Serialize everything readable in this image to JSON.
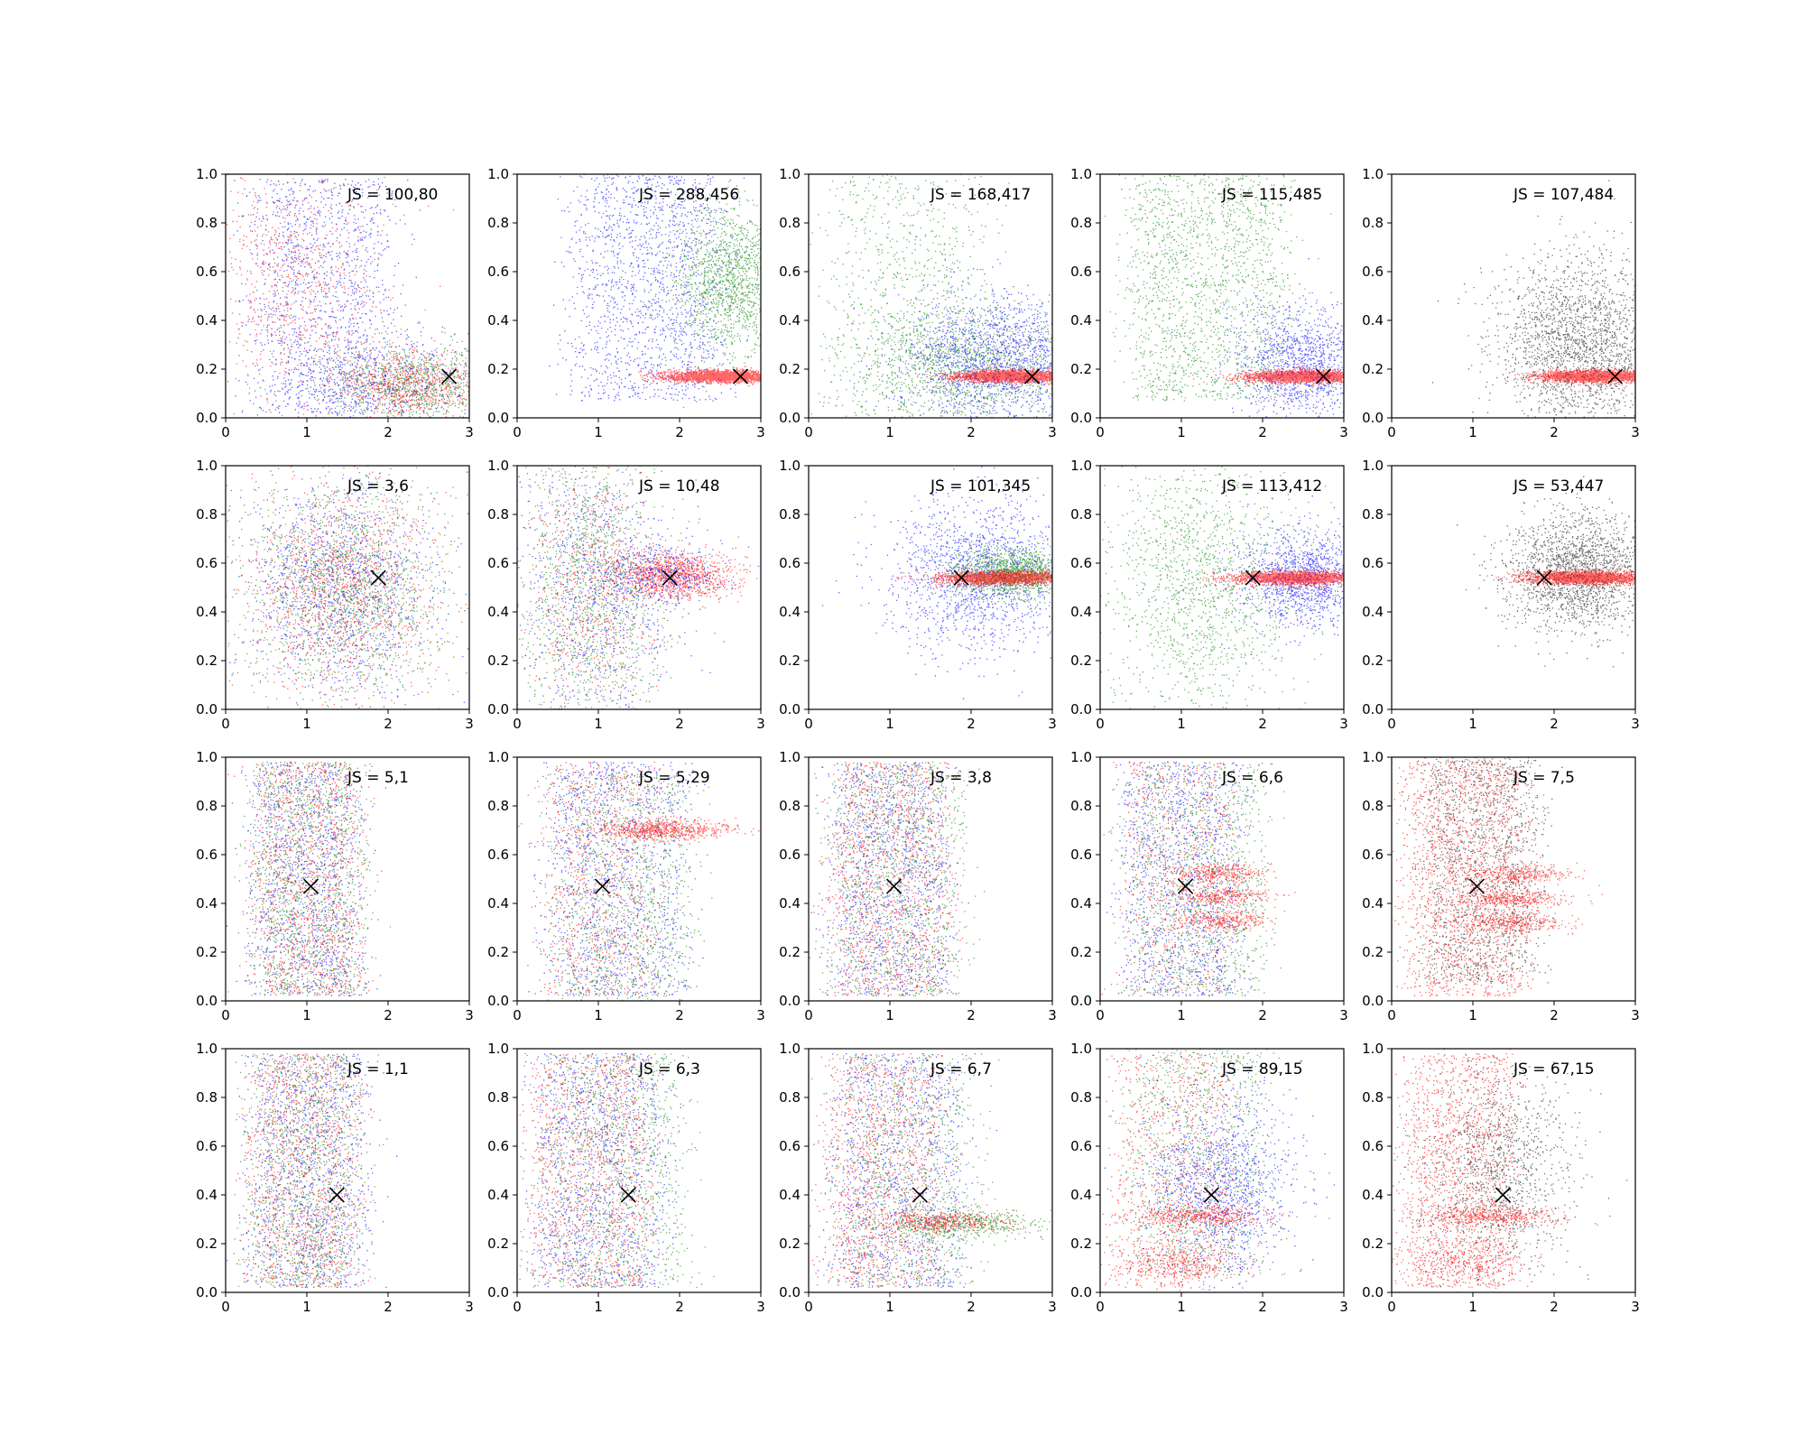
{
  "chart_data": {
    "type": "scatter",
    "grid": false,
    "xlim": [
      0,
      3
    ],
    "ylim": [
      0,
      1
    ],
    "xticks": [
      "0",
      "1",
      "2",
      "3"
    ],
    "yticks": [
      "0.0",
      "0.2",
      "0.4",
      "0.6",
      "0.8",
      "1.0"
    ],
    "colors": {
      "blue": "#0000ff",
      "green": "#008000",
      "red": "#ff0000",
      "black": "#000000"
    },
    "marker": {
      "x": [
        2.75,
        1.88,
        1.05,
        1.37
      ],
      "y": [
        0.17,
        0.54,
        0.47,
        0.4
      ],
      "symbol": "x",
      "color": "#000000"
    },
    "panels": [
      {
        "js": "JS = 100,80",
        "clouds": [
          {
            "color": "blue",
            "n": 1400,
            "cx": 1.2,
            "cy": 0.5,
            "sx": 0.7,
            "sy": 0.3,
            "shape": "uniform"
          },
          {
            "color": "red",
            "n": 900,
            "cx": 0.8,
            "cy": 0.55,
            "sx": 0.6,
            "sy": 0.3
          },
          {
            "color": "green",
            "n": 900,
            "cx": 2.3,
            "cy": 0.14,
            "sx": 0.5,
            "sy": 0.08
          },
          {
            "color": "red",
            "n": 800,
            "cx": 2.3,
            "cy": 0.14,
            "sx": 0.45,
            "sy": 0.07
          },
          {
            "color": "blue",
            "n": 500,
            "cx": 1.9,
            "cy": 0.15,
            "sx": 0.7,
            "sy": 0.1
          }
        ]
      },
      {
        "js": "JS = 288,456",
        "clouds": [
          {
            "color": "blue",
            "n": 1700,
            "cx": 1.6,
            "cy": 0.55,
            "sx": 0.75,
            "sy": 0.3,
            "shape": "uniform"
          },
          {
            "color": "green",
            "n": 1500,
            "cx": 2.6,
            "cy": 0.57,
            "sx": 0.35,
            "sy": 0.15
          },
          {
            "color": "red",
            "n": 2400,
            "cx": 2.5,
            "cy": 0.17,
            "sx": 0.35,
            "sy": 0.012
          }
        ]
      },
      {
        "js": "JS = 168,417",
        "clouds": [
          {
            "color": "green",
            "n": 900,
            "cx": 1.2,
            "cy": 0.55,
            "sx": 0.8,
            "sy": 0.35,
            "shape": "uniform"
          },
          {
            "color": "green",
            "n": 1300,
            "cx": 2.0,
            "cy": 0.22,
            "sx": 0.7,
            "sy": 0.12
          },
          {
            "color": "blue",
            "n": 1700,
            "cx": 2.3,
            "cy": 0.25,
            "sx": 0.6,
            "sy": 0.13
          },
          {
            "color": "red",
            "n": 2400,
            "cx": 2.5,
            "cy": 0.17,
            "sx": 0.35,
            "sy": 0.012
          }
        ]
      },
      {
        "js": "JS = 115,485",
        "clouds": [
          {
            "color": "green",
            "n": 1800,
            "cx": 1.3,
            "cy": 0.55,
            "sx": 0.8,
            "sy": 0.3,
            "shape": "uniform"
          },
          {
            "color": "blue",
            "n": 1300,
            "cx": 2.5,
            "cy": 0.22,
            "sx": 0.4,
            "sy": 0.12
          },
          {
            "color": "red",
            "n": 2400,
            "cx": 2.5,
            "cy": 0.17,
            "sx": 0.35,
            "sy": 0.012
          }
        ]
      },
      {
        "js": "JS = 107,484",
        "clouds": [
          {
            "color": "black",
            "n": 2200,
            "cx": 2.3,
            "cy": 0.3,
            "sx": 0.5,
            "sy": 0.18
          },
          {
            "color": "red",
            "n": 2400,
            "cx": 2.5,
            "cy": 0.17,
            "sx": 0.35,
            "sy": 0.012
          }
        ]
      },
      {
        "js": "JS = 3,6",
        "clouds": [
          {
            "color": "blue",
            "n": 1400,
            "cx": 1.4,
            "cy": 0.5,
            "sx": 0.6,
            "sy": 0.22
          },
          {
            "color": "green",
            "n": 1400,
            "cx": 1.5,
            "cy": 0.5,
            "sx": 0.6,
            "sy": 0.22
          },
          {
            "color": "red",
            "n": 1400,
            "cx": 1.4,
            "cy": 0.5,
            "sx": 0.6,
            "sy": 0.22
          }
        ]
      },
      {
        "js": "JS = 10,48",
        "clouds": [
          {
            "color": "green",
            "n": 1300,
            "cx": 0.9,
            "cy": 0.5,
            "sx": 0.45,
            "sy": 0.3
          },
          {
            "color": "blue",
            "n": 900,
            "cx": 1.0,
            "cy": 0.5,
            "sx": 0.5,
            "sy": 0.3
          },
          {
            "color": "red",
            "n": 700,
            "cx": 0.9,
            "cy": 0.5,
            "sx": 0.45,
            "sy": 0.3
          },
          {
            "color": "red",
            "n": 1200,
            "cx": 1.9,
            "cy": 0.55,
            "sx": 0.4,
            "sy": 0.05
          },
          {
            "color": "blue",
            "n": 400,
            "cx": 1.8,
            "cy": 0.55,
            "sx": 0.4,
            "sy": 0.06
          }
        ]
      },
      {
        "js": "JS = 101,345",
        "clouds": [
          {
            "color": "blue",
            "n": 1600,
            "cx": 2.1,
            "cy": 0.55,
            "sx": 0.55,
            "sy": 0.16
          },
          {
            "color": "green",
            "n": 1300,
            "cx": 2.5,
            "cy": 0.56,
            "sx": 0.35,
            "sy": 0.05
          },
          {
            "color": "red",
            "n": 2200,
            "cx": 2.4,
            "cy": 0.54,
            "sx": 0.38,
            "sy": 0.013
          }
        ]
      },
      {
        "js": "JS = 113,412",
        "clouds": [
          {
            "color": "green",
            "n": 1500,
            "cx": 1.2,
            "cy": 0.5,
            "sx": 0.6,
            "sy": 0.28
          },
          {
            "color": "blue",
            "n": 1300,
            "cx": 2.5,
            "cy": 0.54,
            "sx": 0.4,
            "sy": 0.1
          },
          {
            "color": "red",
            "n": 2200,
            "cx": 2.4,
            "cy": 0.54,
            "sx": 0.38,
            "sy": 0.013
          }
        ]
      },
      {
        "js": "JS = 53,447",
        "clouds": [
          {
            "color": "black",
            "n": 2000,
            "cx": 2.3,
            "cy": 0.56,
            "sx": 0.45,
            "sy": 0.12
          },
          {
            "color": "red",
            "n": 2200,
            "cx": 2.4,
            "cy": 0.54,
            "sx": 0.38,
            "sy": 0.013
          }
        ]
      },
      {
        "js": "JS = 5,1",
        "clouds": [
          {
            "color": "blue",
            "n": 1300,
            "cx": 1.0,
            "cy": 0.5,
            "sx": 0.55,
            "sy": 0.3,
            "shape": "uniform"
          },
          {
            "color": "green",
            "n": 1300,
            "cx": 1.0,
            "cy": 0.5,
            "sx": 0.55,
            "sy": 0.3,
            "shape": "uniform"
          },
          {
            "color": "red",
            "n": 1300,
            "cx": 1.0,
            "cy": 0.5,
            "sx": 0.55,
            "sy": 0.3,
            "shape": "uniform"
          }
        ]
      },
      {
        "js": "JS = 5,29",
        "clouds": [
          {
            "color": "blue",
            "n": 1300,
            "cx": 1.2,
            "cy": 0.5,
            "sx": 0.7,
            "sy": 0.3,
            "shape": "uniform"
          },
          {
            "color": "green",
            "n": 1200,
            "cx": 1.3,
            "cy": 0.45,
            "sx": 0.7,
            "sy": 0.3,
            "shape": "uniform"
          },
          {
            "color": "red",
            "n": 900,
            "cx": 1.0,
            "cy": 0.5,
            "sx": 0.6,
            "sy": 0.3,
            "shape": "uniform"
          },
          {
            "color": "red",
            "n": 700,
            "cx": 1.8,
            "cy": 0.7,
            "sx": 0.4,
            "sy": 0.02
          }
        ]
      },
      {
        "js": "JS = 3,8",
        "clouds": [
          {
            "color": "blue",
            "n": 1300,
            "cx": 1.0,
            "cy": 0.5,
            "sx": 0.6,
            "sy": 0.3,
            "shape": "uniform"
          },
          {
            "color": "green",
            "n": 1200,
            "cx": 1.1,
            "cy": 0.5,
            "sx": 0.65,
            "sy": 0.3,
            "shape": "uniform"
          },
          {
            "color": "red",
            "n": 1300,
            "cx": 1.0,
            "cy": 0.5,
            "sx": 0.6,
            "sy": 0.3,
            "shape": "uniform"
          }
        ]
      },
      {
        "js": "JS = 6,6",
        "clouds": [
          {
            "color": "blue",
            "n": 1300,
            "cx": 1.0,
            "cy": 0.5,
            "sx": 0.6,
            "sy": 0.3,
            "shape": "uniform"
          },
          {
            "color": "green",
            "n": 1200,
            "cx": 1.2,
            "cy": 0.5,
            "sx": 0.7,
            "sy": 0.3,
            "shape": "uniform"
          },
          {
            "color": "red",
            "n": 700,
            "cx": 1.0,
            "cy": 0.5,
            "sx": 0.6,
            "sy": 0.3,
            "shape": "uniform"
          },
          {
            "color": "red",
            "n": 300,
            "cx": 1.5,
            "cy": 0.52,
            "sx": 0.3,
            "sy": 0.02
          },
          {
            "color": "red",
            "n": 300,
            "cx": 1.5,
            "cy": 0.43,
            "sx": 0.3,
            "sy": 0.02
          },
          {
            "color": "red",
            "n": 300,
            "cx": 1.5,
            "cy": 0.33,
            "sx": 0.3,
            "sy": 0.02
          }
        ]
      },
      {
        "js": "JS = 7,5",
        "clouds": [
          {
            "color": "black",
            "n": 1600,
            "cx": 1.1,
            "cy": 0.55,
            "sx": 0.6,
            "sy": 0.3,
            "shape": "uniform"
          },
          {
            "color": "red",
            "n": 1700,
            "cx": 0.9,
            "cy": 0.5,
            "sx": 0.6,
            "sy": 0.3,
            "shape": "uniform"
          },
          {
            "color": "red",
            "n": 350,
            "cx": 1.5,
            "cy": 0.52,
            "sx": 0.35,
            "sy": 0.02
          },
          {
            "color": "red",
            "n": 350,
            "cx": 1.5,
            "cy": 0.42,
            "sx": 0.35,
            "sy": 0.02
          },
          {
            "color": "red",
            "n": 350,
            "cx": 1.5,
            "cy": 0.32,
            "sx": 0.35,
            "sy": 0.02
          }
        ]
      },
      {
        "js": "JS = 1,1",
        "clouds": [
          {
            "color": "blue",
            "n": 1300,
            "cx": 1.0,
            "cy": 0.5,
            "sx": 0.6,
            "sy": 0.3,
            "shape": "uniform"
          },
          {
            "color": "green",
            "n": 1200,
            "cx": 0.95,
            "cy": 0.5,
            "sx": 0.55,
            "sy": 0.3,
            "shape": "uniform"
          },
          {
            "color": "red",
            "n": 1300,
            "cx": 0.95,
            "cy": 0.5,
            "sx": 0.55,
            "sy": 0.3,
            "shape": "uniform"
          }
        ]
      },
      {
        "js": "JS = 6,3",
        "clouds": [
          {
            "color": "blue",
            "n": 1300,
            "cx": 1.0,
            "cy": 0.5,
            "sx": 0.65,
            "sy": 0.3,
            "shape": "uniform"
          },
          {
            "color": "green",
            "n": 1200,
            "cx": 1.2,
            "cy": 0.5,
            "sx": 0.7,
            "sy": 0.3,
            "shape": "uniform"
          },
          {
            "color": "red",
            "n": 1200,
            "cx": 0.9,
            "cy": 0.5,
            "sx": 0.6,
            "sy": 0.3,
            "shape": "uniform"
          }
        ]
      },
      {
        "js": "JS = 6,7",
        "clouds": [
          {
            "color": "blue",
            "n": 1200,
            "cx": 1.1,
            "cy": 0.5,
            "sx": 0.65,
            "sy": 0.3,
            "shape": "uniform"
          },
          {
            "color": "green",
            "n": 1000,
            "cx": 1.2,
            "cy": 0.5,
            "sx": 0.7,
            "sy": 0.3,
            "shape": "uniform"
          },
          {
            "color": "red",
            "n": 1200,
            "cx": 0.9,
            "cy": 0.5,
            "sx": 0.6,
            "sy": 0.3,
            "shape": "uniform"
          },
          {
            "color": "green",
            "n": 500,
            "cx": 1.9,
            "cy": 0.28,
            "sx": 0.5,
            "sy": 0.03
          },
          {
            "color": "red",
            "n": 400,
            "cx": 1.6,
            "cy": 0.29,
            "sx": 0.4,
            "sy": 0.02
          }
        ]
      },
      {
        "js": "JS = 89,15",
        "clouds": [
          {
            "color": "green",
            "n": 1100,
            "cx": 1.2,
            "cy": 0.55,
            "sx": 0.7,
            "sy": 0.3,
            "shape": "uniform"
          },
          {
            "color": "blue",
            "n": 1300,
            "cx": 1.5,
            "cy": 0.45,
            "sx": 0.45,
            "sy": 0.2
          },
          {
            "color": "red",
            "n": 900,
            "cx": 0.9,
            "cy": 0.5,
            "sx": 0.6,
            "sy": 0.3,
            "shape": "uniform"
          },
          {
            "color": "red",
            "n": 450,
            "cx": 1.2,
            "cy": 0.31,
            "sx": 0.45,
            "sy": 0.02
          },
          {
            "color": "red",
            "n": 350,
            "cx": 0.9,
            "cy": 0.12,
            "sx": 0.4,
            "sy": 0.04
          }
        ]
      },
      {
        "js": "JS = 67,15",
        "clouds": [
          {
            "color": "black",
            "n": 1300,
            "cx": 1.3,
            "cy": 0.5,
            "sx": 0.45,
            "sy": 0.22
          },
          {
            "color": "red",
            "n": 1500,
            "cx": 0.8,
            "cy": 0.5,
            "sx": 0.55,
            "sy": 0.3,
            "shape": "uniform"
          },
          {
            "color": "red",
            "n": 450,
            "cx": 1.2,
            "cy": 0.31,
            "sx": 0.45,
            "sy": 0.02
          },
          {
            "color": "red",
            "n": 300,
            "cx": 0.9,
            "cy": 0.12,
            "sx": 0.4,
            "sy": 0.04
          }
        ]
      }
    ]
  }
}
